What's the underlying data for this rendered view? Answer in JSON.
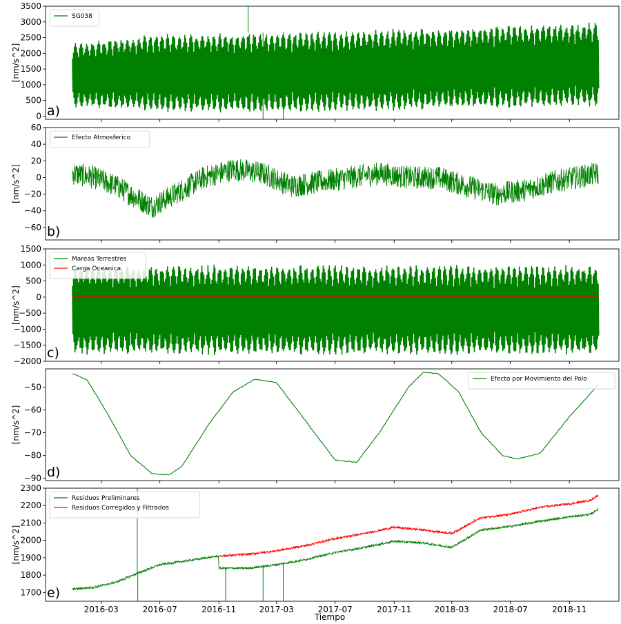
{
  "figure": {
    "xlabel": "Tiempo",
    "x_ticks": [
      "2016-03",
      "2016-07",
      "2016-11",
      "2017-03",
      "2017-07",
      "2017-11",
      "2018-03",
      "2018-07",
      "2018-11"
    ],
    "x_range": [
      "2016-01-01",
      "2018-12-31"
    ]
  },
  "chart_data": [
    {
      "type": "line",
      "panel_label": "a)",
      "ylabel": "[nm/s^2]",
      "ylim": [
        -100,
        3500
      ],
      "y_ticks": [
        0,
        500,
        1000,
        1500,
        2000,
        2500,
        3000,
        3500
      ],
      "legend_position": "top-left",
      "series": [
        {
          "name": "SG038",
          "color": "#008000",
          "kind": "tidal-signal",
          "x": [
            "2016-01-01",
            "2016-06-01",
            "2017-01-01",
            "2017-07-01",
            "2018-01-01",
            "2018-07-01",
            "2018-12-31"
          ],
          "upper": [
            2300,
            2600,
            2650,
            2700,
            2800,
            2900,
            3000
          ],
          "lower": [
            300,
            150,
            100,
            150,
            200,
            250,
            300
          ],
          "spikes": [
            {
              "x": "2017-01-01",
              "y": 3500
            },
            {
              "x": "2017-02-01",
              "y": -100
            },
            {
              "x": "2017-03-15",
              "y": -100
            }
          ]
        }
      ]
    },
    {
      "type": "line",
      "panel_label": "b)",
      "ylabel": "[nm/s^2]",
      "ylim": [
        -75,
        60
      ],
      "y_ticks": [
        -60,
        -40,
        -20,
        0,
        20,
        40,
        60
      ],
      "legend_position": "top-left",
      "series": [
        {
          "name": "Efecto Atmosferico",
          "color": "#008000",
          "kind": "noisy-line",
          "x": [
            "2016-01-01",
            "2016-02-15",
            "2016-04-01",
            "2016-05-15",
            "2016-06-15",
            "2016-08-01",
            "2016-10-01",
            "2016-12-01",
            "2017-02-01",
            "2017-04-01",
            "2017-06-01",
            "2017-08-01",
            "2017-10-01",
            "2017-12-01",
            "2018-02-01",
            "2018-04-01",
            "2018-06-01",
            "2018-08-01",
            "2018-10-01",
            "2018-12-31"
          ],
          "values": [
            5,
            0,
            -10,
            -25,
            -35,
            -20,
            0,
            10,
            5,
            -10,
            -5,
            0,
            5,
            0,
            0,
            -10,
            -20,
            -15,
            -5,
            5
          ],
          "noise": 14
        }
      ]
    },
    {
      "type": "line",
      "panel_label": "c)",
      "ylabel": "[nm/s^2]",
      "ylim": [
        -2000,
        1500
      ],
      "y_ticks": [
        -2000,
        -1500,
        -1000,
        -500,
        0,
        500,
        1000,
        1500
      ],
      "legend_position": "top-left",
      "series": [
        {
          "name": "Mareas Terrestres",
          "color": "#008000",
          "kind": "tidal-signal",
          "x": [
            "2016-01-01",
            "2018-12-31"
          ],
          "upper": [
            1000,
            1000
          ],
          "lower": [
            -1800,
            -1800
          ]
        },
        {
          "name": "Carga Oceanica",
          "color": "#ff0000",
          "kind": "flat-line",
          "x": [
            "2016-01-01",
            "2018-12-31"
          ],
          "values": [
            0,
            0
          ]
        }
      ]
    },
    {
      "type": "line",
      "panel_label": "d)",
      "ylabel": "[nm/s^2]",
      "ylim": [
        -91,
        -42
      ],
      "y_ticks": [
        -90,
        -80,
        -70,
        -60,
        -50
      ],
      "legend_position": "top-right",
      "series": [
        {
          "name": "Efecto por Movimiento del Polo",
          "color": "#008000",
          "kind": "smooth-line",
          "x": [
            "2016-01-01",
            "2016-02-01",
            "2016-03-15",
            "2016-05-01",
            "2016-06-15",
            "2016-07-20",
            "2016-08-15",
            "2016-10-15",
            "2016-12-01",
            "2017-01-15",
            "2017-03-01",
            "2017-05-01",
            "2017-07-01",
            "2017-08-15",
            "2017-10-01",
            "2017-12-01",
            "2018-01-01",
            "2018-02-01",
            "2018-03-15",
            "2018-05-01",
            "2018-06-15",
            "2018-07-15",
            "2018-09-01",
            "2018-11-01",
            "2018-12-31"
          ],
          "values": [
            -44,
            -47,
            -62,
            -80,
            -88,
            -88.5,
            -85,
            -65,
            -52,
            -46.5,
            -48,
            -65,
            -82,
            -83,
            -70,
            -50,
            -43.5,
            -44,
            -52,
            -70,
            -80,
            -81.5,
            -79,
            -63,
            -49
          ]
        }
      ]
    },
    {
      "type": "line",
      "panel_label": "e)",
      "ylabel": "[nm/s^2]",
      "ylim": [
        1650,
        2300
      ],
      "y_ticks": [
        1700,
        1800,
        1900,
        2000,
        2100,
        2200,
        2300
      ],
      "legend_position": "top-left",
      "series": [
        {
          "name": "Residuos Preliminares",
          "color": "#008000",
          "kind": "noisy-line",
          "x": [
            "2016-01-01",
            "2016-02-15",
            "2016-04-01",
            "2016-05-15",
            "2016-07-01",
            "2016-09-01",
            "2016-10-31",
            "2016-11-01",
            "2017-01-01",
            "2017-03-01",
            "2017-05-01",
            "2017-07-01",
            "2017-09-01",
            "2017-11-01",
            "2018-01-01",
            "2018-03-01",
            "2018-05-01",
            "2018-07-01",
            "2018-09-01",
            "2018-11-01",
            "2018-12-15",
            "2018-12-31"
          ],
          "values": [
            1720,
            1730,
            1760,
            1810,
            1860,
            1885,
            1910,
            1840,
            1840,
            1860,
            1890,
            1930,
            1960,
            1995,
            1985,
            1960,
            2060,
            2080,
            2110,
            2135,
            2150,
            2180
          ],
          "noise": 6,
          "spikes": [
            {
              "x": "2016-05-15",
              "y": 2300
            },
            {
              "x": "2016-05-16",
              "y": 1650
            },
            {
              "x": "2016-11-15",
              "y": 1650
            },
            {
              "x": "2017-02-01",
              "y": 1650
            },
            {
              "x": "2017-03-15",
              "y": 1650
            }
          ]
        },
        {
          "name": "Residuos Corregidos y Filtrados",
          "color": "#ff0000",
          "kind": "noisy-line",
          "x": [
            "2016-11-01",
            "2017-01-01",
            "2017-03-01",
            "2017-05-01",
            "2017-07-01",
            "2017-09-01",
            "2017-11-01",
            "2018-01-01",
            "2018-03-01",
            "2018-05-01",
            "2018-07-01",
            "2018-09-01",
            "2018-11-01",
            "2018-12-15",
            "2018-12-31"
          ],
          "values": [
            1910,
            1920,
            1940,
            1970,
            2010,
            2040,
            2075,
            2060,
            2040,
            2130,
            2150,
            2190,
            2210,
            2230,
            2260
          ],
          "noise": 6
        }
      ]
    }
  ]
}
